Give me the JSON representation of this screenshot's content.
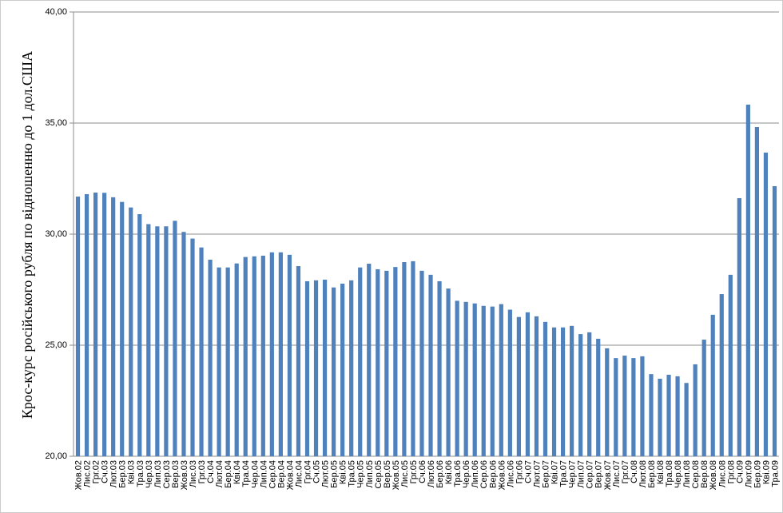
{
  "chart_data": {
    "type": "bar",
    "y_label": "Крос-курс російського рубля по відношенню до 1 дол.США",
    "categories": [
      "Жов.02",
      "Лис.02",
      "Грг.02",
      "Сч.03",
      "Лют.03",
      "Бер.03",
      "Кві.03",
      "Тра.03",
      "Чер.03",
      "Лип.03",
      "Сер.03",
      "Вер.03",
      "Жов.03",
      "Лис.03",
      "Грг.03",
      "Сч.04",
      "Лют.04",
      "Бер.04",
      "Кві.04",
      "Тра.04",
      "Чер.04",
      "Лип.04",
      "Сер.04",
      "Вер.04",
      "Жов.04",
      "Лис.04",
      "Грг.04",
      "Сч.05",
      "Лют.05",
      "Бер.05",
      "Кві.05",
      "Тра.05",
      "Чер.05",
      "Лип.05",
      "Сер.05",
      "Вер.05",
      "Жов.05",
      "Лис.05",
      "Грг.05",
      "Сч.06",
      "Лют.06",
      "Бер.06",
      "Кві.06",
      "Тра.06",
      "Чер.06",
      "Лип.06",
      "Сер.06",
      "Вер.06",
      "Жов.06",
      "Лис.06",
      "Грг.06",
      "Сч.07",
      "Лют.07",
      "Бер.07",
      "Кві.07",
      "Тра.07",
      "Чер.07",
      "Лип.07",
      "Сер.07",
      "Вер.07",
      "Жов.07",
      "Лис.07",
      "Грг.07",
      "Сч.08",
      "Лют.08",
      "Бер.08",
      "Кві.08",
      "Тра.08",
      "Чер.08",
      "Лип.08",
      "Сер.08",
      "Вер.08",
      "Жов.08",
      "Лис.08",
      "Грг.08",
      "Сч.09",
      "Лют.09",
      "Бер.09",
      "Кві.09",
      "Тра.09"
    ],
    "values": [
      31.69,
      31.8,
      31.87,
      31.86,
      31.66,
      31.45,
      31.2,
      30.9,
      30.45,
      30.35,
      30.35,
      30.6,
      30.1,
      29.8,
      29.4,
      28.85,
      28.5,
      28.5,
      28.68,
      28.97,
      29.0,
      29.03,
      29.18,
      29.18,
      29.07,
      28.56,
      27.88,
      27.92,
      27.95,
      27.6,
      27.77,
      27.92,
      28.5,
      28.67,
      28.42,
      28.35,
      28.52,
      28.74,
      28.78,
      28.35,
      28.17,
      27.88,
      27.55,
      27.0,
      26.95,
      26.88,
      26.77,
      26.74,
      26.85,
      26.6,
      26.27,
      26.48,
      26.3,
      26.05,
      25.8,
      25.8,
      25.87,
      25.5,
      25.58,
      25.29,
      24.86,
      24.42,
      24.53,
      24.42,
      24.5,
      23.7,
      23.49,
      23.67,
      23.6,
      23.3,
      24.14,
      25.25,
      26.37,
      27.3,
      28.17,
      31.62,
      35.83,
      34.82,
      33.67,
      32.16
    ],
    "color": "#4f81bd",
    "ylim": [
      20,
      40
    ],
    "yticks": [
      {
        "value": 20,
        "label": "20,00"
      },
      {
        "value": 25,
        "label": "25,00"
      },
      {
        "value": 30,
        "label": "30,00"
      },
      {
        "value": 35,
        "label": "35,00"
      },
      {
        "value": 40,
        "label": "40,00"
      }
    ],
    "grid": true
  }
}
